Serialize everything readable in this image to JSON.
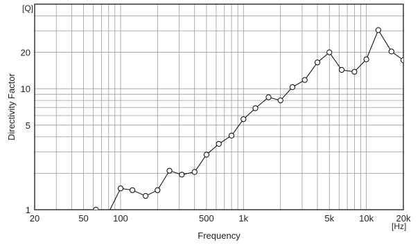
{
  "chart_data": {
    "type": "line",
    "xscale": "log",
    "yscale": "log",
    "xlabel": "Frequency",
    "ylabel": "Directivity Factor",
    "x_unit": "[Hz]",
    "y_unit": "[Q]",
    "xlim": [
      20,
      20000
    ],
    "ylim": [
      1,
      50
    ],
    "grid": true,
    "x_ticks": [
      {
        "value": 20,
        "label": "20"
      },
      {
        "value": 50,
        "label": "50"
      },
      {
        "value": 100,
        "label": "100"
      },
      {
        "value": 500,
        "label": "500"
      },
      {
        "value": 1000,
        "label": "1k"
      },
      {
        "value": 5000,
        "label": "5k"
      },
      {
        "value": 10000,
        "label": "10k"
      },
      {
        "value": 20000,
        "label": "20k"
      }
    ],
    "y_ticks": [
      {
        "value": 1,
        "label": "1"
      },
      {
        "value": 5,
        "label": "5"
      },
      {
        "value": 10,
        "label": "10"
      },
      {
        "value": 20,
        "label": "20"
      }
    ],
    "series": [
      {
        "marker": "circle",
        "color": "#000000",
        "x": [
          63,
          80,
          100,
          125,
          160,
          200,
          250,
          315,
          400,
          500,
          630,
          800,
          1000,
          1250,
          1600,
          2000,
          2500,
          3150,
          4000,
          5000,
          6300,
          8000,
          10000,
          12500,
          16000,
          20000
        ],
        "y": [
          1.0,
          0.95,
          1.5,
          1.45,
          1.3,
          1.45,
          2.1,
          1.95,
          2.05,
          2.85,
          3.5,
          4.1,
          5.6,
          6.9,
          8.5,
          8.0,
          10.3,
          11.8,
          16.5,
          20.0,
          14.3,
          13.8,
          17.5,
          30.5,
          20.3,
          17.2
        ]
      }
    ]
  }
}
